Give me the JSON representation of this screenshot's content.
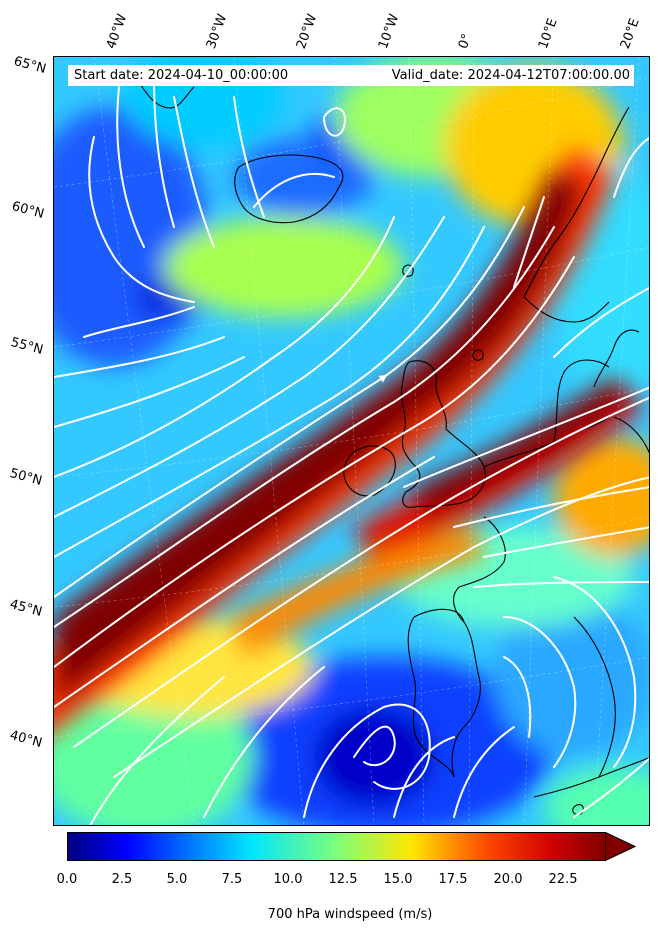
{
  "map": {
    "start_date": "Start date: 2024-04-10_00:00:00",
    "valid_date": "Valid_date: 2024-04-12T07:00:00.00",
    "longitude_labels": [
      "40°W",
      "30°W",
      "20°W",
      "10°W",
      "0°",
      "10°E",
      "20°E"
    ],
    "latitude_labels": [
      "65°N",
      "60°N",
      "55°N",
      "50°N",
      "45°N",
      "40°N"
    ],
    "field": "windspeed",
    "overlay": "streamlines",
    "colormap": "jet",
    "colors": {
      "streamline": "#ffffff",
      "coastline": "#000000",
      "jet_core": "#800000",
      "calm": "#0000ff"
    }
  },
  "colorbar": {
    "title": "700 hPa windspeed (m/s)",
    "ticks": [
      "0.0",
      "2.5",
      "5.0",
      "7.5",
      "10.0",
      "12.5",
      "15.0",
      "17.5",
      "20.0",
      "22.5"
    ],
    "min": 0,
    "max": 25,
    "extend": "max"
  }
}
